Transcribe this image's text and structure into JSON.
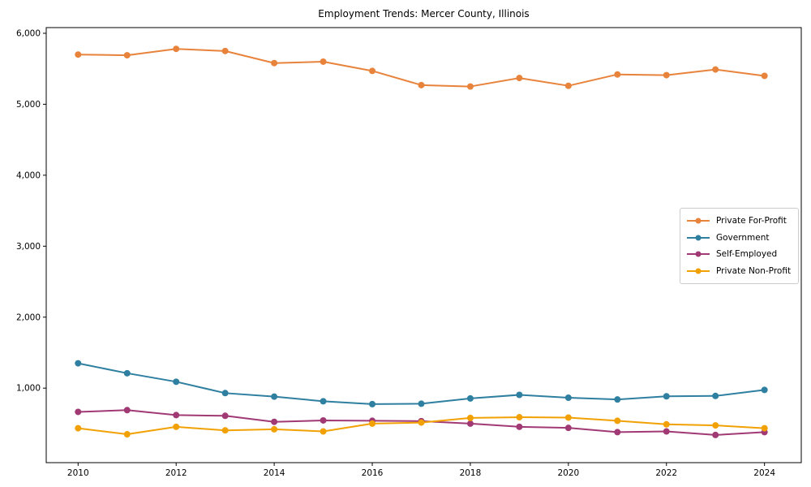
{
  "chart_data": {
    "type": "line",
    "title": "Employment Trends: Mercer County, Illinois",
    "xlabel": "",
    "ylabel": "",
    "x": [
      2010,
      2011,
      2012,
      2013,
      2014,
      2015,
      2016,
      2017,
      2018,
      2019,
      2020,
      2021,
      2022,
      2023,
      2024
    ],
    "xticks": [
      2010,
      2012,
      2014,
      2016,
      2018,
      2020,
      2022,
      2024
    ],
    "xtick_labels": [
      "2010",
      "2012",
      "2014",
      "2016",
      "2018",
      "2020",
      "2022",
      "2024"
    ],
    "yticks": [
      1000,
      2000,
      3000,
      4000,
      5000,
      6000
    ],
    "ytick_labels": [
      "1,000",
      "2,000",
      "3,000",
      "4,000",
      "5,000",
      "6,000"
    ],
    "xlim": [
      2009.35,
      2024.75
    ],
    "ylim": [
      -50,
      6080
    ],
    "grid": false,
    "legend_position": "center right",
    "background_color": "#ffffff",
    "spine_color": "#000000",
    "series": [
      {
        "name": "Private For-Profit",
        "color": "#e8833c",
        "values": [
          5700,
          5690,
          5780,
          5750,
          5580,
          5600,
          5470,
          5270,
          5250,
          5370,
          5260,
          5420,
          5410,
          5490,
          5400
        ]
      },
      {
        "name": "Government",
        "color": "#2e7fa0",
        "values": [
          1350,
          1210,
          1090,
          930,
          880,
          815,
          775,
          780,
          855,
          905,
          865,
          840,
          885,
          890,
          975
        ]
      },
      {
        "name": "Self-Employed",
        "color": "#a13a74",
        "values": [
          665,
          690,
          620,
          610,
          525,
          545,
          540,
          535,
          500,
          455,
          440,
          380,
          390,
          340,
          380
        ]
      },
      {
        "name": "Private Non-Profit",
        "color": "#f2a104",
        "values": [
          435,
          350,
          455,
          405,
          420,
          390,
          500,
          515,
          580,
          590,
          585,
          540,
          490,
          475,
          435
        ]
      }
    ]
  }
}
